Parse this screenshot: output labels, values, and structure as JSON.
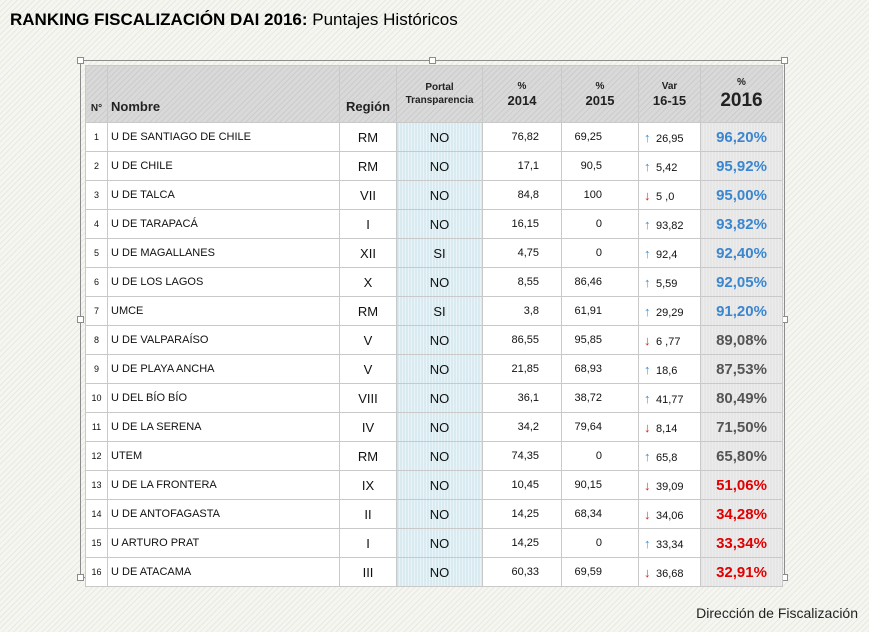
{
  "title": {
    "bold": "RANKING FISCALIZACIÓN DAI 2016:",
    "rest": " Puntajes Históricos"
  },
  "header": {
    "n": "N°",
    "name": "Nombre",
    "region": "Región",
    "portal_l1": "Portal",
    "portal_l2": "Transparencia",
    "p2014_l1": "%",
    "p2014_l2": "2014",
    "p2015_l1": "%",
    "p2015_l2": "2015",
    "var_l1": "Var",
    "var_l2": "16-15",
    "p2016_l1": "%",
    "p2016_l2": "2016"
  },
  "colors": {
    "up": "#3b8fd6",
    "down": "#e0201a",
    "blue": "#3a86cf",
    "gray": "#555555",
    "red": "#e00000"
  },
  "rows": [
    {
      "n": "1",
      "name": "U DE SANTIAGO DE CHILE",
      "region": "RM",
      "portal": "NO",
      "p2014": "76,82",
      "p2015": "69,25",
      "dir": "up",
      "var": "26,95",
      "p2016": "96,20%",
      "tone": "blue"
    },
    {
      "n": "2",
      "name": "U DE CHILE",
      "region": "RM",
      "portal": "NO",
      "p2014": "17,1",
      "p2015": "90,5",
      "dir": "up",
      "var": "5,42",
      "p2016": "95,92%",
      "tone": "blue"
    },
    {
      "n": "3",
      "name": "U DE TALCA",
      "region": "VII",
      "portal": "NO",
      "p2014": "84,8",
      "p2015": "100",
      "dir": "down",
      "var": "5 ,0",
      "p2016": "95,00%",
      "tone": "blue"
    },
    {
      "n": "4",
      "name": "U DE TARAPACÁ",
      "region": "I",
      "portal": "NO",
      "p2014": "16,15",
      "p2015": "0",
      "dir": "up",
      "var": "93,82",
      "p2016": "93,82%",
      "tone": "blue"
    },
    {
      "n": "5",
      "name": "U DE MAGALLANES",
      "region": "XII",
      "portal": "SI",
      "p2014": "4,75",
      "p2015": "0",
      "dir": "up",
      "var": "92,4",
      "p2016": "92,40%",
      "tone": "blue"
    },
    {
      "n": "6",
      "name": "U DE LOS LAGOS",
      "region": "X",
      "portal": "NO",
      "p2014": "8,55",
      "p2015": "86,46",
      "dir": "up",
      "var": "5,59",
      "p2016": "92,05%",
      "tone": "blue"
    },
    {
      "n": "7",
      "name": "UMCE",
      "region": "RM",
      "portal": "SI",
      "p2014": "3,8",
      "p2015": "61,91",
      "dir": "up",
      "var": "29,29",
      "p2016": "91,20%",
      "tone": "blue"
    },
    {
      "n": "8",
      "name": "U DE VALPARAÍSO",
      "region": "V",
      "portal": "NO",
      "p2014": "86,55",
      "p2015": "95,85",
      "dir": "down",
      "var": "6 ,77",
      "p2016": "89,08%",
      "tone": "gray"
    },
    {
      "n": "9",
      "name": "U DE PLAYA ANCHA",
      "region": "V",
      "portal": "NO",
      "p2014": "21,85",
      "p2015": "68,93",
      "dir": "up",
      "var": "18,6",
      "p2016": "87,53%",
      "tone": "gray"
    },
    {
      "n": "10",
      "name": "U DEL BÍO BÍO",
      "region": "VIII",
      "portal": "NO",
      "p2014": "36,1",
      "p2015": "38,72",
      "dir": "up",
      "var": "41,77",
      "p2016": "80,49%",
      "tone": "gray"
    },
    {
      "n": "11",
      "name": "U DE LA SERENA",
      "region": "IV",
      "portal": "NO",
      "p2014": "34,2",
      "p2015": "79,64",
      "dir": "down",
      "var": "8,14",
      "p2016": "71,50%",
      "tone": "gray"
    },
    {
      "n": "12",
      "name": "UTEM",
      "region": "RM",
      "portal": "NO",
      "p2014": "74,35",
      "p2015": "0",
      "dir": "up",
      "var": "65,8",
      "p2016": "65,80%",
      "tone": "gray"
    },
    {
      "n": "13",
      "name": "U DE LA FRONTERA",
      "region": "IX",
      "portal": "NO",
      "p2014": "10,45",
      "p2015": "90,15",
      "dir": "down",
      "var": "39,09",
      "p2016": "51,06%",
      "tone": "red"
    },
    {
      "n": "14",
      "name": "U DE ANTOFAGASTA",
      "region": "II",
      "portal": "NO",
      "p2014": "14,25",
      "p2015": "68,34",
      "dir": "down",
      "var": "34,06",
      "p2016": "34,28%",
      "tone": "red"
    },
    {
      "n": "15",
      "name": "U ARTURO PRAT",
      "region": "I",
      "portal": "NO",
      "p2014": "14,25",
      "p2015": "0",
      "dir": "up",
      "var": "33,34",
      "p2016": "33,34%",
      "tone": "red"
    },
    {
      "n": "16",
      "name": "U DE ATACAMA",
      "region": "III",
      "portal": "NO",
      "p2014": "60,33",
      "p2015": "69,59",
      "dir": "down",
      "var": "36,68",
      "p2016": "32,91%",
      "tone": "red"
    }
  ],
  "footer": "Dirección de Fiscalización"
}
